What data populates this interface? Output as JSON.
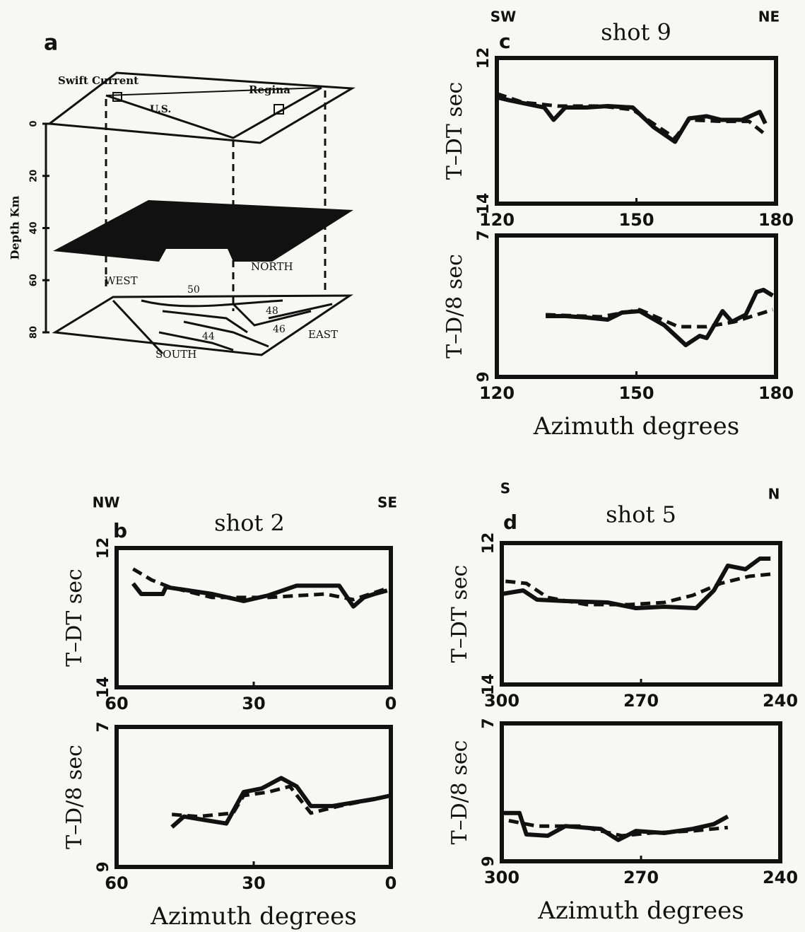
{
  "panel_a": {
    "label": "a",
    "y_label": "Depth Km",
    "depth_ticks": [
      0,
      20,
      40,
      60,
      80
    ],
    "places": [
      "Swift Current",
      "Regina",
      "U.S."
    ],
    "directions": [
      "WEST",
      "NORTH",
      "EAST",
      "SOUTH"
    ],
    "contours": [
      50,
      48,
      46,
      44
    ]
  },
  "chart_data": [
    {
      "type": "line",
      "label": "c",
      "title": "shot 9",
      "left_direction": "SW",
      "right_direction": "NE",
      "y_label": "T–DT sec",
      "xlim": [
        120,
        180
      ],
      "xticks": [
        120,
        150,
        180
      ],
      "ylim": [
        14,
        12
      ],
      "yticks": [
        12,
        14
      ],
      "series": [
        {
          "dashed": false,
          "color": "#111",
          "x": [
            120,
            122.6,
            130.2,
            132.2,
            134.7,
            139.3,
            143.8,
            149.2,
            153.7,
            158.3,
            161.3,
            165.1,
            168.2,
            172.7,
            176.5,
            177.7
          ],
          "values": [
            12.54,
            12.58,
            12.68,
            12.85,
            12.68,
            12.68,
            12.66,
            12.68,
            12.95,
            13.15,
            12.83,
            12.8,
            12.85,
            12.85,
            12.74,
            12.9
          ]
        },
        {
          "dashed": true,
          "color": "#111",
          "x": [
            120,
            125.6,
            133.2,
            142.3,
            149.2,
            158.3,
            161.3,
            168.2,
            174.2,
            177.7
          ],
          "values": [
            12.49,
            12.61,
            12.66,
            12.66,
            12.71,
            13.1,
            12.85,
            12.87,
            12.87,
            13.05
          ]
        }
      ]
    },
    {
      "type": "line",
      "y_label": "T–D/8 sec",
      "x_label": "Azimuth degrees",
      "xlim": [
        120,
        180
      ],
      "xticks": [
        120,
        150,
        180
      ],
      "ylim": [
        9,
        7
      ],
      "yticks": [
        7,
        9
      ],
      "series": [
        {
          "dashed": false,
          "color": "#111",
          "x": [
            130.5,
            134.7,
            139.3,
            143.8,
            146.9,
            150.7,
            156,
            160.6,
            163.6,
            165.1,
            168.5,
            170.5,
            173.5,
            175.8,
            177.3,
            179.3
          ],
          "values": [
            8.14,
            8.14,
            8.16,
            8.19,
            8.09,
            8.07,
            8.27,
            8.55,
            8.42,
            8.45,
            8.07,
            8.22,
            8.12,
            7.8,
            7.77,
            7.85
          ]
        },
        {
          "dashed": true,
          "color": "#111",
          "x": [
            130.5,
            142.3,
            150.7,
            159,
            165.1,
            171.1,
            179.3
          ],
          "values": [
            8.12,
            8.15,
            8.05,
            8.29,
            8.29,
            8.22,
            8.05
          ]
        }
      ]
    },
    {
      "type": "line",
      "label": "b",
      "title": "shot 2",
      "left_direction": "NW",
      "right_direction": "SE",
      "y_label": "T–DT sec",
      "xlim": [
        60,
        0
      ],
      "xticks": [
        60,
        30,
        0
      ],
      "ylim": [
        14,
        12
      ],
      "yticks": [
        12,
        14
      ],
      "series": [
        {
          "dashed": false,
          "color": "#111",
          "x": [
            56.4,
            54.6,
            49.9,
            49.2,
            39.1,
            32.2,
            26.8,
            20.6,
            11.3,
            8.2,
            5.9,
            3.6,
            0.8
          ],
          "values": [
            12.51,
            12.66,
            12.66,
            12.56,
            12.66,
            12.76,
            12.68,
            12.54,
            12.54,
            12.84,
            12.71,
            12.66,
            12.61
          ]
        },
        {
          "dashed": true,
          "color": "#111",
          "x": [
            56.4,
            52.3,
            48.4,
            39.1,
            26.8,
            14.4,
            8.2,
            3.6,
            0.8
          ],
          "values": [
            12.3,
            12.46,
            12.56,
            12.71,
            12.71,
            12.66,
            12.74,
            12.64,
            12.58
          ]
        }
      ]
    },
    {
      "type": "line",
      "y_label": "T–D/8 sec",
      "x_label": "Azimuth degrees",
      "xlim": [
        60,
        0
      ],
      "xticks": [
        60,
        30,
        0
      ],
      "ylim": [
        9,
        7
      ],
      "yticks": [
        7,
        9
      ],
      "series": [
        {
          "dashed": false,
          "color": "#111",
          "x": [
            47.9,
            45.3,
            40.7,
            36,
            32.2,
            28.3,
            24,
            20.6,
            17.5,
            12.8,
            8.2,
            3.6,
            0
          ],
          "values": [
            8.43,
            8.28,
            8.33,
            8.38,
            7.93,
            7.88,
            7.73,
            7.85,
            8.13,
            8.13,
            8.08,
            8.03,
            7.98
          ]
        },
        {
          "dashed": true,
          "color": "#111",
          "x": [
            47.9,
            42.2,
            34.5,
            32.2,
            26.8,
            22.1,
            17.5,
            11.3,
            5.1,
            0
          ],
          "values": [
            8.25,
            8.28,
            8.23,
            7.98,
            7.93,
            7.85,
            8.23,
            8.13,
            8.05,
            7.98
          ]
        }
      ]
    },
    {
      "type": "line",
      "label": "d",
      "title": "shot 5",
      "left_direction": "S",
      "right_direction": "N",
      "y_label": "T–DT sec",
      "xlim": [
        300,
        240
      ],
      "xticks": [
        300,
        270,
        240
      ],
      "ylim": [
        14,
        12
      ],
      "yticks": [
        12,
        14
      ],
      "series": [
        {
          "dashed": false,
          "color": "#111",
          "x": [
            300,
            295.4,
            292.4,
            286.3,
            277.2,
            271.1,
            265,
            258.1,
            254.3,
            251.3,
            247.5,
            244.4,
            242.1
          ],
          "values": [
            12.72,
            12.67,
            12.8,
            12.82,
            12.84,
            12.92,
            12.9,
            12.92,
            12.67,
            12.32,
            12.37,
            12.22,
            12.22
          ]
        },
        {
          "dashed": true,
          "color": "#111",
          "x": [
            299.2,
            294.7,
            290.1,
            281.7,
            272.6,
            265,
            258.9,
            252.8,
            246.7,
            242.1
          ],
          "values": [
            12.54,
            12.57,
            12.77,
            12.87,
            12.87,
            12.84,
            12.74,
            12.57,
            12.47,
            12.44
          ]
        }
      ]
    },
    {
      "type": "line",
      "y_label": "T–D/8 sec",
      "x_label": "Azimuth degrees",
      "xlim": [
        300,
        240
      ],
      "xticks": [
        300,
        270,
        240
      ],
      "ylim": [
        9,
        7
      ],
      "yticks": [
        7,
        9
      ],
      "series": [
        {
          "dashed": false,
          "color": "#111",
          "x": [
            299.7,
            296.2,
            294.7,
            290.1,
            286.3,
            278.7,
            274.9,
            271.1,
            265,
            258.9,
            254.3,
            251.3
          ],
          "values": [
            8.3,
            8.3,
            8.61,
            8.63,
            8.49,
            8.53,
            8.69,
            8.56,
            8.59,
            8.53,
            8.46,
            8.35
          ]
        },
        {
          "dashed": true,
          "color": "#111",
          "x": [
            298.5,
            292.4,
            283.2,
            274.1,
            268,
            258.9,
            251.3
          ],
          "values": [
            8.41,
            8.49,
            8.49,
            8.63,
            8.59,
            8.56,
            8.51
          ]
        }
      ]
    }
  ]
}
